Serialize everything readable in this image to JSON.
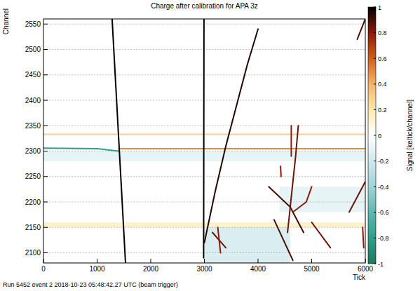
{
  "chart_data": {
    "type": "heatmap",
    "title": "Charge after calibration for APA 3z",
    "x_label": "Tick",
    "y_label": "Channel",
    "footer": "Run 5452 event 2 2018-10-23 05:48:42.27 UTC (beam trigger)",
    "colorbar_label": "Signal [ke/tick/channel]",
    "xlim": [
      0,
      6000
    ],
    "xticks": [
      0,
      1000,
      2000,
      3000,
      4000,
      5000,
      6000
    ],
    "ylim": [
      2080,
      2560
    ],
    "yticks": [
      2100,
      2150,
      2200,
      2250,
      2300,
      2350,
      2400,
      2450,
      2500,
      2550
    ],
    "zlim": [
      -1,
      1
    ],
    "zticks": [
      -1,
      -0.8,
      -0.6,
      -0.4,
      -0.2,
      0,
      0.2,
      0.4,
      0.6,
      0.8,
      1
    ],
    "grid": true,
    "regions": [
      {
        "x": [
          0,
          6000
        ],
        "y": [
          2280,
          2300
        ],
        "value": -0.1
      },
      {
        "x": [
          3000,
          4600
        ],
        "y": [
          2080,
          2160
        ],
        "value": -0.15
      },
      {
        "x": [
          4400,
          6000
        ],
        "y": [
          2180,
          2230
        ],
        "value": -0.1
      },
      {
        "x": [
          0,
          6000
        ],
        "y": [
          2150,
          2160
        ],
        "value": 0.12
      }
    ],
    "tracks": [
      {
        "x": [
          0,
          6000
        ],
        "y": [
          2333,
          2333
        ],
        "value": 0.3
      },
      {
        "x": [
          1400,
          6000
        ],
        "y": [
          2305,
          2305
        ],
        "value": 0.5
      },
      {
        "x": [
          0,
          1000,
          1400
        ],
        "y": [
          2306,
          2305,
          2300
        ],
        "value": -0.8
      },
      {
        "x": [
          1280,
          1530
        ],
        "y": [
          2560,
          2080
        ],
        "value": 1
      },
      {
        "x": [
          2992,
          2985
        ],
        "y": [
          2560,
          2090
        ],
        "value": 1
      },
      {
        "x": [
          3000,
          3200,
          3400,
          3600,
          3800,
          4000
        ],
        "y": [
          2120,
          2220,
          2310,
          2390,
          2470,
          2540
        ],
        "value": 0.95
      },
      {
        "x": [
          4200,
          4600
        ],
        "y": [
          2230,
          2190
        ],
        "value": 0.9
      },
      {
        "x": [
          4600,
          4700,
          4750
        ],
        "y": [
          2190,
          2290,
          2350
        ],
        "value": 0.85
      },
      {
        "x": [
          4600,
          4850
        ],
        "y": [
          2190,
          2140
        ],
        "value": 0.9
      },
      {
        "x": [
          4600,
          4550
        ],
        "y": [
          2190,
          2140
        ],
        "value": 0.85
      },
      {
        "x": [
          4650,
          4900,
          5000
        ],
        "y": [
          2180,
          2200,
          2230
        ],
        "value": 0.8
      },
      {
        "x": [
          4300,
          4650
        ],
        "y": [
          2165,
          2085
        ],
        "value": 0.9
      },
      {
        "x": [
          4620,
          4620
        ],
        "y": [
          2350,
          2290
        ],
        "value": 0.8
      },
      {
        "x": [
          5850,
          6000
        ],
        "y": [
          2520,
          2560
        ],
        "value": 0.9
      },
      {
        "x": [
          5700,
          6000
        ],
        "y": [
          2180,
          2240
        ],
        "value": 0.85
      },
      {
        "x": [
          3150,
          3400
        ],
        "y": [
          2140,
          2110
        ],
        "value": 0.85
      },
      {
        "x": [
          3300,
          3250
        ],
        "y": [
          2100,
          2150
        ],
        "value": 0.8
      },
      {
        "x": [
          5000,
          5350
        ],
        "y": [
          2160,
          2110
        ],
        "value": 0.85
      },
      {
        "x": [
          4420,
          4430
        ],
        "y": [
          2270,
          2250
        ],
        "value": 0.8
      },
      {
        "x": [
          5950,
          5970
        ],
        "y": [
          2150,
          2110
        ],
        "value": 0.8
      }
    ]
  }
}
